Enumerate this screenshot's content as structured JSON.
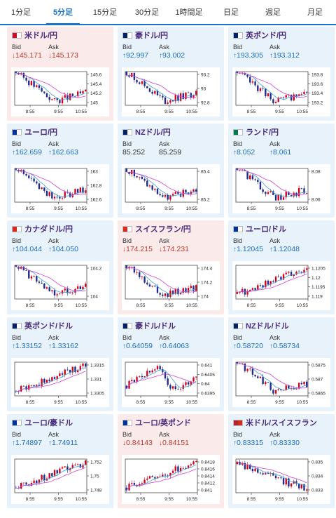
{
  "tabs": [
    {
      "label": "1分足",
      "active": false
    },
    {
      "label": "5分足",
      "active": true
    },
    {
      "label": "15分足",
      "active": false
    },
    {
      "label": "30分足",
      "active": false
    },
    {
      "label": "1時間足",
      "active": false
    },
    {
      "label": "日足",
      "active": false
    },
    {
      "label": "週足",
      "active": false
    },
    {
      "label": "月足",
      "active": false
    }
  ],
  "labels": {
    "bid": "Bid",
    "ask": "Ask"
  },
  "cards": [
    {
      "name": "米ドル/円",
      "bg": "pink",
      "dir": "down",
      "bid": "145.171",
      "ask": "145.173",
      "flag": [
        "#c8102e",
        "#ffffff"
      ],
      "yticks": [
        "145.6",
        "145.4",
        "145.2",
        "145"
      ],
      "xticks": [
        "8:55",
        "9:55",
        "10:55"
      ],
      "trend": "down-up"
    },
    {
      "name": "豪ドル/円",
      "bg": "blue",
      "dir": "up",
      "bid": "92.997",
      "ask": "93.002",
      "flag": [
        "#012169",
        "#ffffff"
      ],
      "yticks": [
        "93.2",
        "93",
        "92.8"
      ],
      "xticks": [
        "8:55",
        "9:55",
        "10:55"
      ],
      "trend": "down-up"
    },
    {
      "name": "英ポンド/円",
      "bg": "blue",
      "dir": "up",
      "bid": "193.305",
      "ask": "193.312",
      "flag": [
        "#012169",
        "#ffffff"
      ],
      "yticks": [
        "193.8",
        "193.6",
        "193.4",
        "193.2"
      ],
      "xticks": [
        "8:55",
        "9:55",
        "10:55"
      ],
      "trend": "down-up"
    },
    {
      "name": "ユーロ/円",
      "bg": "blue",
      "dir": "up",
      "bid": "162.659",
      "ask": "162.663",
      "flag": [
        "#003399",
        "#ffffff"
      ],
      "yticks": [
        "163",
        "162.8",
        "162.6"
      ],
      "xticks": [
        "8:55",
        "9:55",
        "10:55"
      ],
      "trend": "down-up"
    },
    {
      "name": "NZドル/円",
      "bg": "blue",
      "dir": "none",
      "bid": "85.252",
      "ask": "85.259",
      "flag": [
        "#012169",
        "#ffffff"
      ],
      "yticks": [
        "85.4",
        "85.2"
      ],
      "xticks": [
        "8:55",
        "9:55",
        "10:55"
      ],
      "trend": "down-up"
    },
    {
      "name": "ランド/円",
      "bg": "blue",
      "dir": "up",
      "bid": "8.052",
      "ask": "8.061",
      "flag": [
        "#007a4d",
        "#ffffff"
      ],
      "yticks": [
        "8.08",
        "8.06"
      ],
      "xticks": [
        "8:55",
        "9:55",
        "10:55"
      ],
      "trend": "down-up"
    },
    {
      "name": "カナダドル/円",
      "bg": "blue",
      "dir": "up",
      "bid": "104.044",
      "ask": "104.050",
      "flag": [
        "#d52b1e",
        "#ffffff"
      ],
      "yticks": [
        "104.2",
        "104"
      ],
      "xticks": [
        "8:55",
        "9:55",
        "10:55"
      ],
      "trend": "down-up"
    },
    {
      "name": "スイスフラン/円",
      "bg": "pink",
      "dir": "down",
      "bid": "174.215",
      "ask": "174.231",
      "flag": [
        "#d52b1e",
        "#ffffff"
      ],
      "yticks": [
        "174.4",
        "174.2",
        "174"
      ],
      "xticks": [
        "8:55",
        "9:55",
        "10:55"
      ],
      "trend": "down-up"
    },
    {
      "name": "ユーロ/ドル",
      "bg": "blue",
      "dir": "up",
      "bid": "1.12045",
      "ask": "1.12048",
      "flag": [
        "#003399",
        "#ffffff"
      ],
      "yticks": [
        "1.1205",
        "1.12",
        "1.1195",
        "1.119"
      ],
      "xticks": [
        "8:55",
        "9:55",
        "10:55"
      ],
      "trend": "up"
    },
    {
      "name": "英ポンド/ドル",
      "bg": "blue",
      "dir": "up",
      "bid": "1.33152",
      "ask": "1.33162",
      "flag": [
        "#012169",
        "#ffffff"
      ],
      "yticks": [
        "1.3315",
        "1.331",
        "1.3305"
      ],
      "xticks": [
        "8:55",
        "9:55",
        "10:55"
      ],
      "trend": "up"
    },
    {
      "name": "豪ドル/ドル",
      "bg": "blue",
      "dir": "up",
      "bid": "0.64059",
      "ask": "0.64063",
      "flag": [
        "#012169",
        "#ffffff"
      ],
      "yticks": [
        "0.641",
        "0.6405",
        "0.64",
        "0.6395"
      ],
      "xticks": [
        "8:55",
        "9:55",
        "10:55"
      ],
      "trend": "up-down-up"
    },
    {
      "name": "NZドル/ドル",
      "bg": "blue",
      "dir": "up",
      "bid": "0.58720",
      "ask": "0.58734",
      "flag": [
        "#012169",
        "#ffffff"
      ],
      "yticks": [
        "0.5875",
        "0.587",
        "0.5865"
      ],
      "xticks": [
        "8:55",
        "9:55",
        "10:55"
      ],
      "trend": "down-up"
    },
    {
      "name": "ユーロ/豪ドル",
      "bg": "blue",
      "dir": "up",
      "bid": "1.74897",
      "ask": "1.74911",
      "flag": [
        "#003399",
        "#ffffff"
      ],
      "yticks": [
        "1.752",
        "1.75",
        "1.748"
      ],
      "xticks": [
        "8:55",
        "9:55",
        "10:55"
      ],
      "trend": "up"
    },
    {
      "name": "ユーロ/英ポンド",
      "bg": "pink",
      "dir": "down",
      "bid": "0.84143",
      "ask": "0.84151",
      "flag": [
        "#003399",
        "#ffffff"
      ],
      "yticks": [
        "0.8418",
        "0.8416",
        "0.8414",
        "0.8412",
        "0.841"
      ],
      "xticks": [
        "8:55",
        "9:55",
        "10:55"
      ],
      "trend": "up"
    },
    {
      "name": "米ドル/スイスフラン",
      "bg": "blue",
      "dir": "up",
      "bid": "0.83315",
      "ask": "0.83330",
      "flag": [
        "#b22234",
        "#d52b1e"
      ],
      "yticks": [
        "0.835",
        "0.834",
        "0.833"
      ],
      "xticks": [
        "8:55",
        "9:55",
        "10:55"
      ],
      "trend": "down"
    }
  ]
}
